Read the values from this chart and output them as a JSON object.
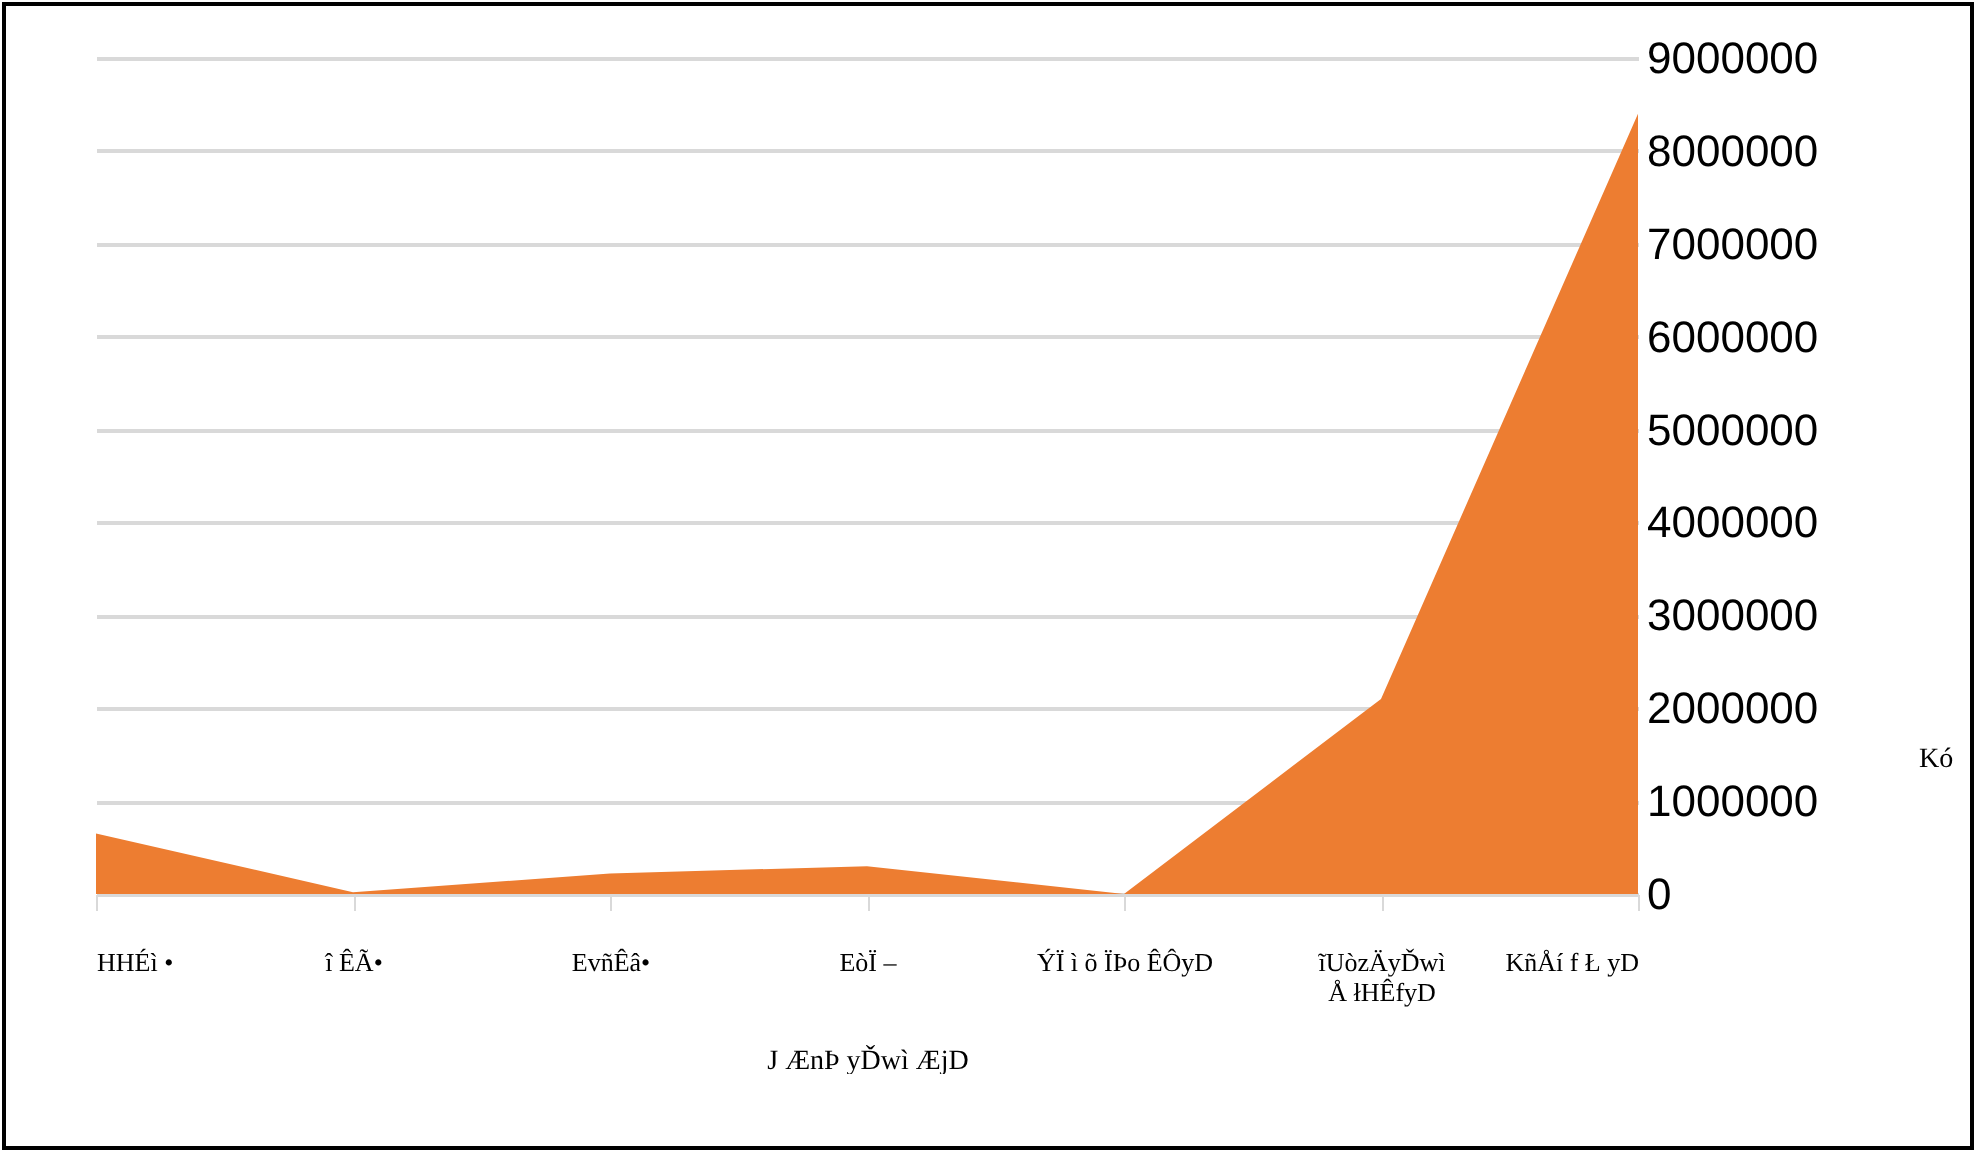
{
  "chart_data": {
    "type": "area",
    "xlabel": "J ÆnÞ yĎwì ÆjD",
    "ylabel": "Kó",
    "categories": [
      "HHÉì •",
      "î ÊÃ•",
      "EvñÊâ•",
      "EòÏ –",
      "ÝÏ ì õ ÏÞo ÊÔyD",
      "ĩUòzÄyĎwì Å łHÊfyD",
      "KñÅí f Ł yD"
    ],
    "series": [
      {
        "color": "#ed7d31",
        "values": [
          650000,
          20000,
          220000,
          300000,
          0,
          2100000,
          8400000
        ]
      }
    ],
    "ylim": [
      0,
      9000000
    ],
    "yticks": [
      0,
      1000000,
      2000000,
      3000000,
      4000000,
      5000000,
      6000000,
      7000000,
      8000000,
      9000000
    ],
    "grid": "y"
  }
}
